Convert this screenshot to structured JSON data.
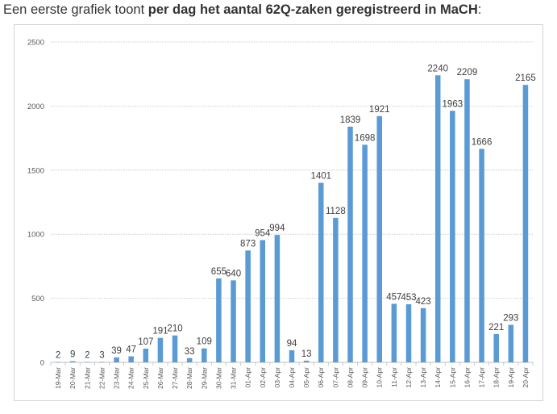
{
  "caption": {
    "prefix": "Een eerste grafiek toont ",
    "bold": "per dag het aantal 62Q-zaken geregistreerd in MaCH",
    "suffix": ":"
  },
  "chart_data": {
    "type": "bar",
    "title": "",
    "xlabel": "",
    "ylabel": "",
    "ylim": [
      0,
      2500
    ],
    "yticks": [
      0,
      500,
      1000,
      1500,
      2000,
      2500
    ],
    "grid": true,
    "bar_color": "#5b9bd5",
    "categories": [
      "19-Mar",
      "20-Mar",
      "21-Mar",
      "22-Mar",
      "23-Mar",
      "24-Mar",
      "25-Mar",
      "26-Mar",
      "27-Mar",
      "28-Mar",
      "29-Mar",
      "30-Mar",
      "31-Mar",
      "01-Apr",
      "02-Apr",
      "03-Apr",
      "04-Apr",
      "05-Apr",
      "06-Apr",
      "07-Apr",
      "08-Apr",
      "09-Apr",
      "10-Apr",
      "11-Apr",
      "12-Apr",
      "13-Apr",
      "14-Apr",
      "15-Apr",
      "16-Apr",
      "17-Apr",
      "18-Apr",
      "19-Apr",
      "20-Apr"
    ],
    "values": [
      2,
      9,
      2,
      3,
      39,
      47,
      107,
      191,
      210,
      33,
      109,
      655,
      640,
      873,
      954,
      994,
      94,
      13,
      1401,
      1128,
      1839,
      1698,
      1921,
      457,
      453,
      423,
      2240,
      1963,
      2209,
      1666,
      221,
      293,
      2165
    ]
  }
}
